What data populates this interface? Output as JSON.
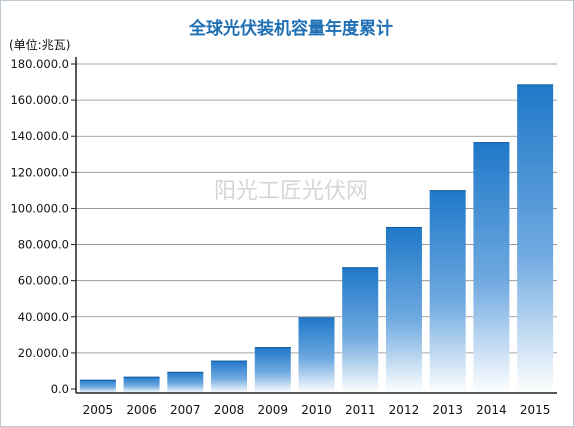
{
  "chart_data": {
    "type": "bar",
    "title": "全球光伏装机容量年度累计",
    "ylabel": "(单位:兆瓦)",
    "xlabel": "",
    "watermark": "阳光工匠光伏网",
    "categories": [
      "2005",
      "2006",
      "2007",
      "2008",
      "2009",
      "2010",
      "2011",
      "2012",
      "2013",
      "2014",
      "2015"
    ],
    "values": [
      5100,
      6800,
      9500,
      15700,
      23200,
      39700,
      67400,
      89700,
      110100,
      136700,
      168700
    ],
    "ylim": [
      0,
      180000
    ],
    "yticks": [
      0,
      20000,
      40000,
      60000,
      80000,
      100000,
      120000,
      140000,
      160000,
      180000
    ],
    "ytick_labels": [
      "0.0",
      "20.000.0",
      "40.000.0",
      "60.000.0",
      "80.000.0",
      "100.000.0",
      "120.000.0",
      "140.000.0",
      "160.000.0",
      "180.000.0"
    ],
    "grid": true,
    "colors": {
      "bar_top": "#1f78c8",
      "bar_bottom": "#ffffff",
      "title": "#1e6fb4",
      "grid": "#8a8a8a"
    }
  }
}
